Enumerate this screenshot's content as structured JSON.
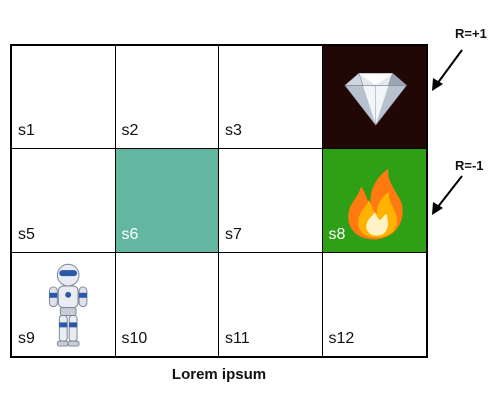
{
  "colors": {
    "goal_bg": "#210706",
    "wall_bg": "#63b6a0",
    "fire_bg": "#2f9f16",
    "grid_line": "#000000"
  },
  "cells": [
    {
      "label": "s1"
    },
    {
      "label": "s2"
    },
    {
      "label": "s3"
    },
    {
      "label": "",
      "content": "diamond"
    },
    {
      "label": "s5"
    },
    {
      "label": "s6",
      "content": "wall"
    },
    {
      "label": "s7"
    },
    {
      "label": "s8",
      "content": "fire"
    },
    {
      "label": "s9",
      "content": "robot"
    },
    {
      "label": "s10"
    },
    {
      "label": "s11"
    },
    {
      "label": "s12"
    }
  ],
  "rewards": {
    "goal": "R=+1",
    "fire": "R=-1"
  },
  "caption": "Lorem ipsum"
}
